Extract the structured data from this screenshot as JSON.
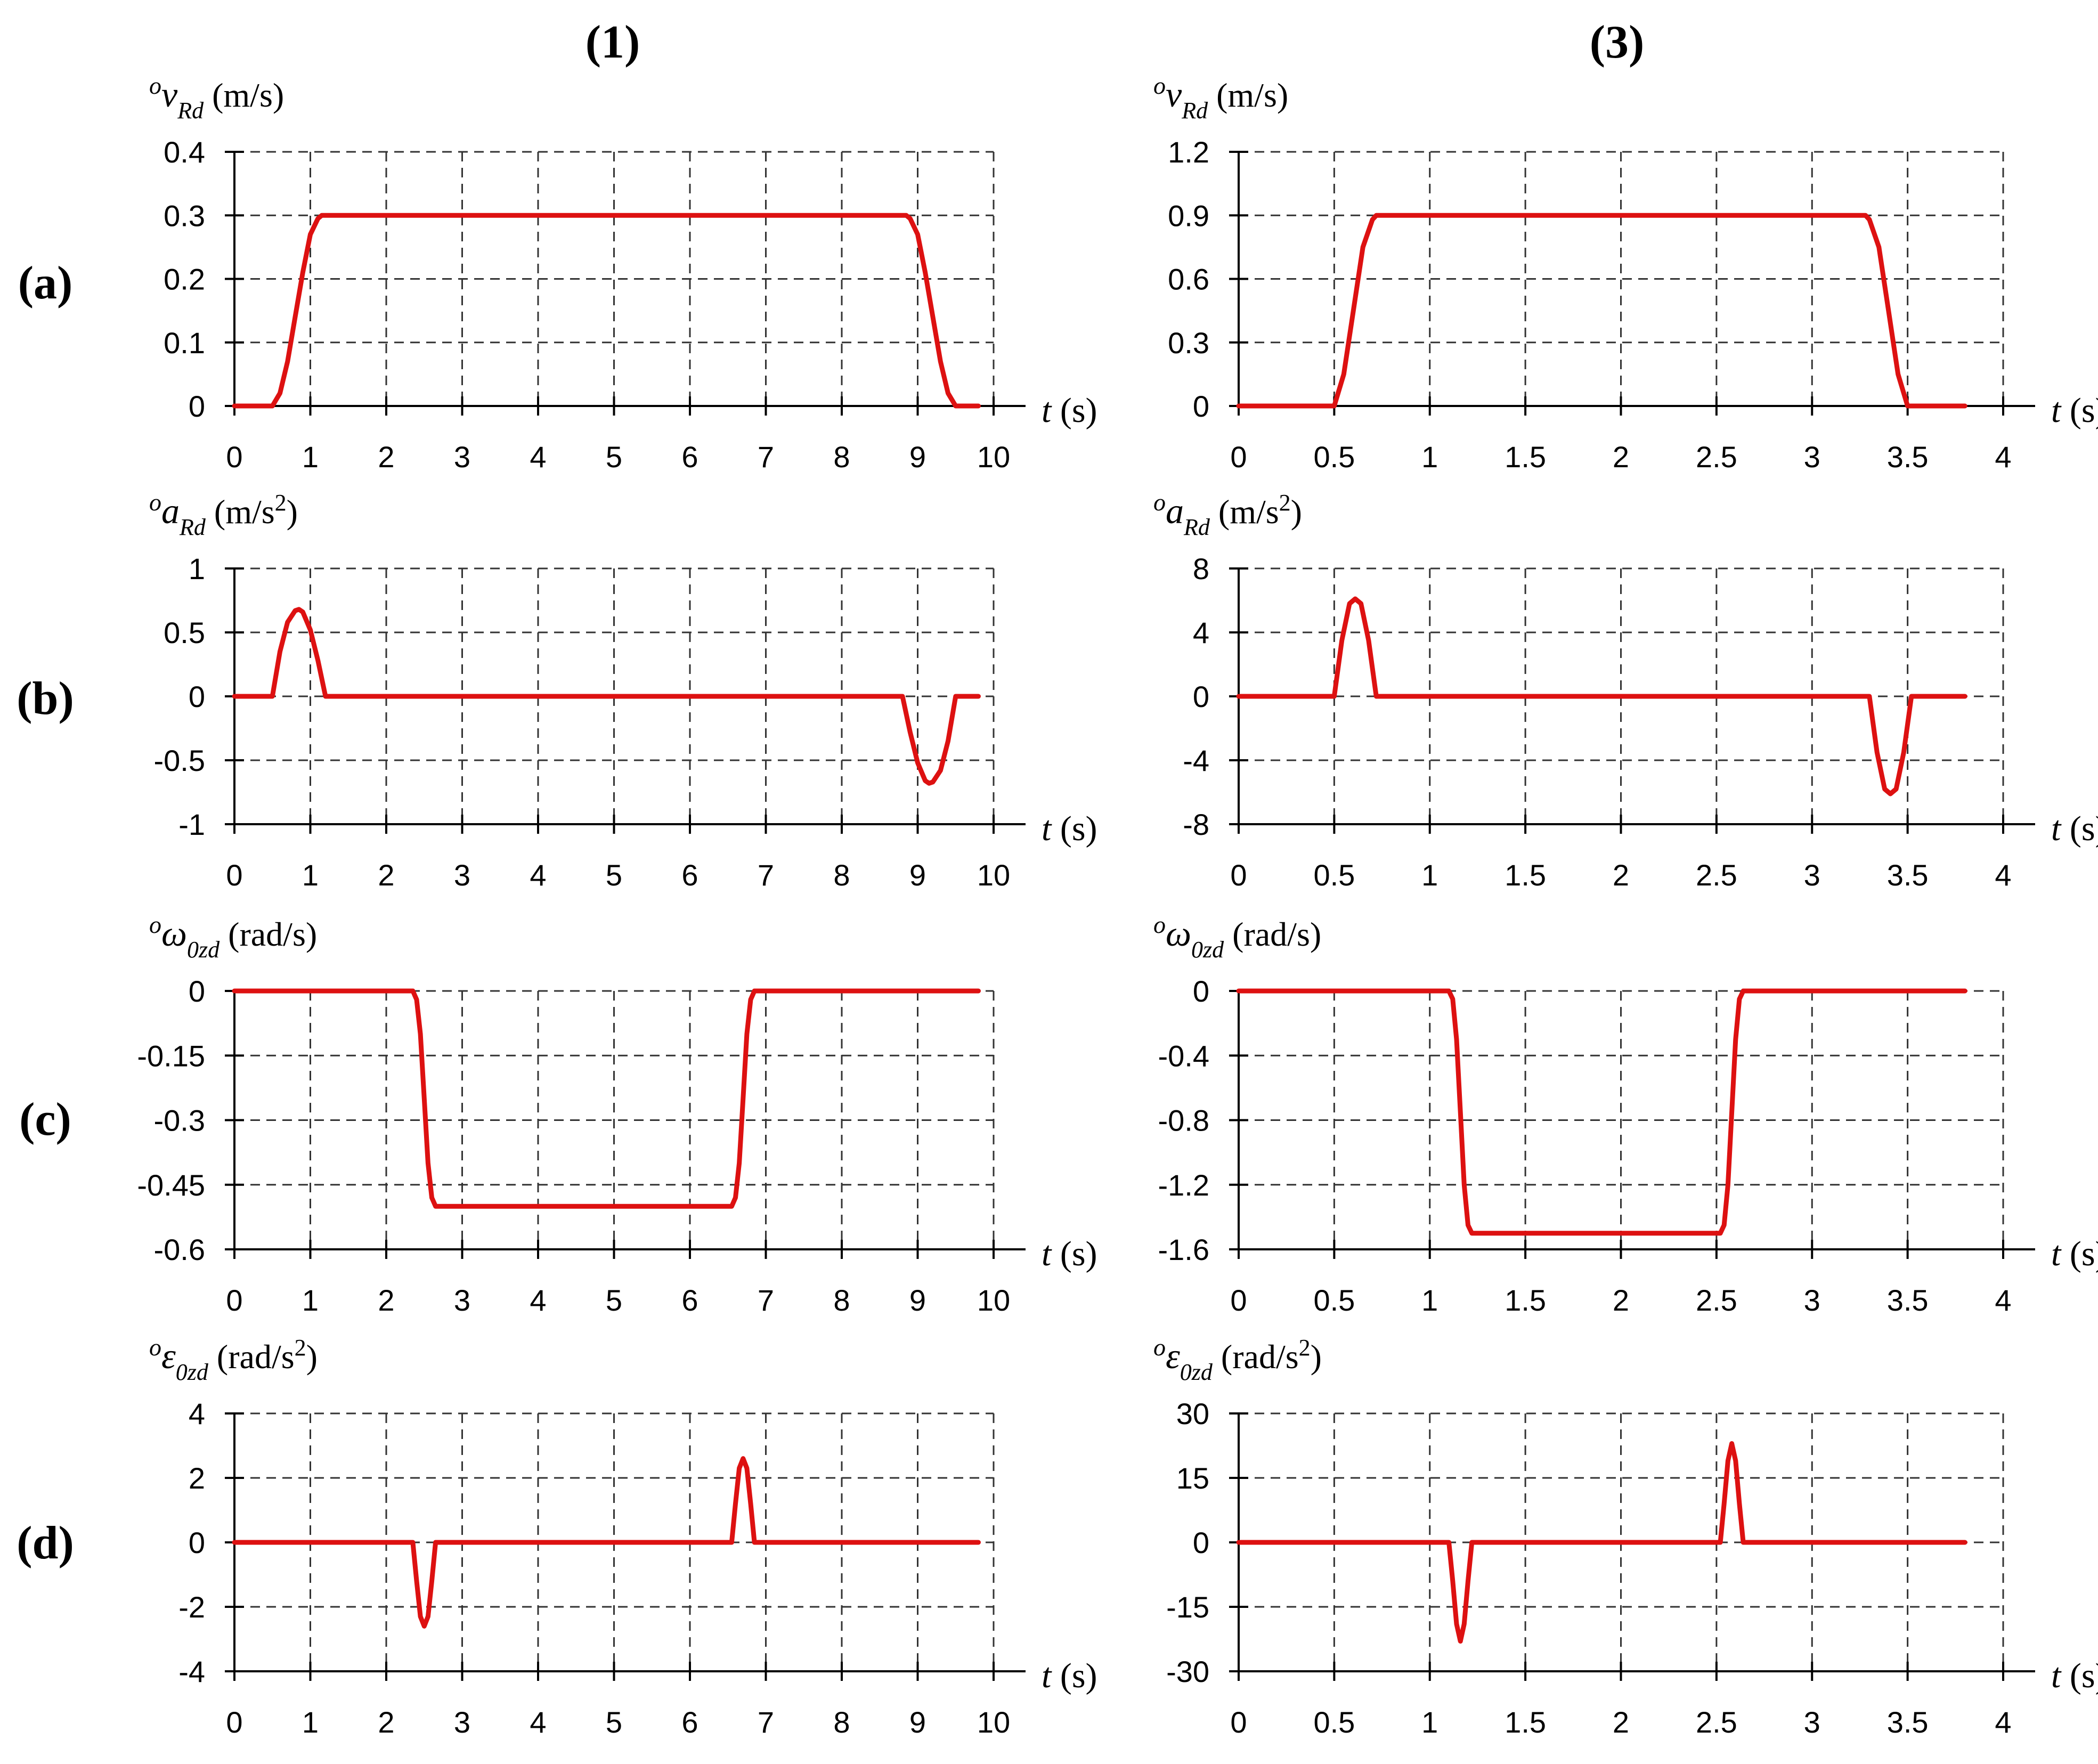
{
  "figure": {
    "column_headers": [
      "(1)",
      "(3)"
    ],
    "row_labels": [
      "(a)",
      "(b)",
      "(c)",
      "(d)"
    ],
    "x_label": {
      "italic": "t",
      "unit": "(s)"
    },
    "line_color": "#dd1111",
    "grid_color": "#333333"
  },
  "chart_data": [
    {
      "id": "a1",
      "type": "line",
      "row": 0,
      "col": 0,
      "ylabel": {
        "sup": "o",
        "sym": "v",
        "sub": "Rd",
        "unit": "(m/s)",
        "unit_sup": ""
      },
      "xlim": [
        0,
        10
      ],
      "ylim": [
        0,
        0.4
      ],
      "xticks": [
        0,
        1,
        2,
        3,
        4,
        5,
        6,
        7,
        8,
        9,
        10
      ],
      "xtick_labels": [
        "0",
        "1",
        "2",
        "3",
        "4",
        "5",
        "6",
        "7",
        "8",
        "9",
        "10"
      ],
      "yticks": [
        0,
        0.1,
        0.2,
        0.3,
        0.4
      ],
      "ytick_labels": [
        "0",
        "0.1",
        "0.2",
        "0.3",
        "0.4"
      ],
      "x": [
        0,
        0.5,
        0.6,
        0.7,
        0.8,
        0.9,
        1.0,
        1.1,
        1.15,
        8.85,
        8.9,
        9.0,
        9.1,
        9.2,
        9.3,
        9.4,
        9.5,
        9.8
      ],
      "y": [
        0,
        0,
        0.02,
        0.07,
        0.14,
        0.21,
        0.27,
        0.295,
        0.3,
        0.3,
        0.295,
        0.27,
        0.21,
        0.14,
        0.07,
        0.02,
        0,
        0
      ]
    },
    {
      "id": "a3",
      "type": "line",
      "row": 0,
      "col": 1,
      "ylabel": {
        "sup": "o",
        "sym": "v",
        "sub": "Rd",
        "unit": "(m/s)",
        "unit_sup": ""
      },
      "xlim": [
        0,
        4
      ],
      "ylim": [
        0,
        1.2
      ],
      "xticks": [
        0,
        0.5,
        1,
        1.5,
        2,
        2.5,
        3,
        3.5,
        4
      ],
      "xtick_labels": [
        "0",
        "0.5",
        "1",
        "1.5",
        "2",
        "2.5",
        "3",
        "3.5",
        "4"
      ],
      "yticks": [
        0,
        0.3,
        0.6,
        0.9,
        1.2
      ],
      "ytick_labels": [
        "0",
        "0.3",
        "0.6",
        "0.9",
        "1.2"
      ],
      "x": [
        0,
        0.5,
        0.55,
        0.6,
        0.65,
        0.7,
        0.72,
        3.28,
        3.3,
        3.35,
        3.4,
        3.45,
        3.5,
        3.8
      ],
      "y": [
        0,
        0,
        0.15,
        0.45,
        0.75,
        0.88,
        0.9,
        0.9,
        0.88,
        0.75,
        0.45,
        0.15,
        0,
        0
      ]
    },
    {
      "id": "b1",
      "type": "line",
      "row": 1,
      "col": 0,
      "ylabel": {
        "sup": "o",
        "sym": "a",
        "sub": "Rd",
        "unit": "(m/s",
        "unit_sup": "2"
      },
      "xlim": [
        0,
        10
      ],
      "ylim": [
        -1,
        1
      ],
      "xticks": [
        0,
        1,
        2,
        3,
        4,
        5,
        6,
        7,
        8,
        9,
        10
      ],
      "xtick_labels": [
        "0",
        "1",
        "2",
        "3",
        "4",
        "5",
        "6",
        "7",
        "8",
        "9",
        "10"
      ],
      "yticks": [
        -1,
        -0.5,
        0,
        0.5,
        1
      ],
      "ytick_labels": [
        "-1",
        "-0.5",
        "0",
        "0.5",
        "1"
      ],
      "x": [
        0,
        0.5,
        0.6,
        0.7,
        0.8,
        0.85,
        0.9,
        1.0,
        1.1,
        1.2,
        8.8,
        8.9,
        9.0,
        9.1,
        9.15,
        9.2,
        9.3,
        9.4,
        9.5,
        9.8
      ],
      "y": [
        0,
        0,
        0.35,
        0.58,
        0.67,
        0.68,
        0.66,
        0.52,
        0.28,
        0,
        0,
        -0.28,
        -0.52,
        -0.66,
        -0.68,
        -0.67,
        -0.58,
        -0.35,
        0,
        0
      ]
    },
    {
      "id": "b3",
      "type": "line",
      "row": 1,
      "col": 1,
      "ylabel": {
        "sup": "o",
        "sym": "a",
        "sub": "Rd",
        "unit": "(m/s",
        "unit_sup": "2"
      },
      "xlim": [
        0,
        4
      ],
      "ylim": [
        -8,
        8
      ],
      "xticks": [
        0,
        0.5,
        1,
        1.5,
        2,
        2.5,
        3,
        3.5,
        4
      ],
      "xtick_labels": [
        "0",
        "0.5",
        "1",
        "1.5",
        "2",
        "2.5",
        "3",
        "3.5",
        "4"
      ],
      "yticks": [
        -8,
        -4,
        0,
        4,
        8
      ],
      "ytick_labels": [
        "-8",
        "-4",
        "0",
        "4",
        "8"
      ],
      "x": [
        0,
        0.5,
        0.54,
        0.58,
        0.61,
        0.64,
        0.68,
        0.72,
        3.3,
        3.34,
        3.38,
        3.41,
        3.44,
        3.48,
        3.52,
        3.8
      ],
      "y": [
        0,
        0,
        3.5,
        5.8,
        6.1,
        5.8,
        3.5,
        0,
        0,
        -3.5,
        -5.8,
        -6.1,
        -5.8,
        -3.5,
        0,
        0
      ]
    },
    {
      "id": "c1",
      "type": "line",
      "row": 2,
      "col": 0,
      "ylabel": {
        "sup": "o",
        "sym": "ω",
        "sub": "0zd",
        "unit": "(rad/s)",
        "unit_sup": ""
      },
      "xlim": [
        0,
        10
      ],
      "ylim": [
        -0.6,
        0
      ],
      "xticks": [
        0,
        1,
        2,
        3,
        4,
        5,
        6,
        7,
        8,
        9,
        10
      ],
      "xtick_labels": [
        "0",
        "1",
        "2",
        "3",
        "4",
        "5",
        "6",
        "7",
        "8",
        "9",
        "10"
      ],
      "yticks": [
        -0.6,
        -0.45,
        -0.3,
        -0.15,
        0
      ],
      "ytick_labels": [
        "-0.6",
        "-0.45",
        "-0.3",
        "-0.15",
        "0"
      ],
      "x": [
        0,
        2.35,
        2.4,
        2.45,
        2.5,
        2.55,
        2.6,
        2.65,
        6.55,
        6.6,
        6.65,
        6.7,
        6.75,
        6.8,
        6.85,
        9.8
      ],
      "y": [
        0,
        0,
        -0.02,
        -0.1,
        -0.25,
        -0.4,
        -0.48,
        -0.5,
        -0.5,
        -0.48,
        -0.4,
        -0.25,
        -0.1,
        -0.02,
        0,
        0
      ]
    },
    {
      "id": "c3",
      "type": "line",
      "row": 2,
      "col": 1,
      "ylabel": {
        "sup": "o",
        "sym": "ω",
        "sub": "0zd",
        "unit": "(rad/s)",
        "unit_sup": ""
      },
      "xlim": [
        0,
        4
      ],
      "ylim": [
        -1.6,
        0
      ],
      "xticks": [
        0,
        0.5,
        1,
        1.5,
        2,
        2.5,
        3,
        3.5,
        4
      ],
      "xtick_labels": [
        "0",
        "0.5",
        "1",
        "1.5",
        "2",
        "2.5",
        "3",
        "3.5",
        "4"
      ],
      "yticks": [
        -1.6,
        -1.2,
        -0.8,
        -0.4,
        0
      ],
      "ytick_labels": [
        "-1.6",
        "-1.2",
        "-0.8",
        "-0.4",
        "0"
      ],
      "x": [
        0,
        1.1,
        1.12,
        1.14,
        1.16,
        1.18,
        1.2,
        1.22,
        2.52,
        2.54,
        2.56,
        2.58,
        2.6,
        2.62,
        2.64,
        3.8
      ],
      "y": [
        0,
        0,
        -0.05,
        -0.3,
        -0.75,
        -1.2,
        -1.45,
        -1.5,
        -1.5,
        -1.45,
        -1.2,
        -0.75,
        -0.3,
        -0.05,
        0,
        0
      ]
    },
    {
      "id": "d1",
      "type": "line",
      "row": 3,
      "col": 0,
      "ylabel": {
        "sup": "o",
        "sym": "ε",
        "sub": "0zd",
        "unit": "(rad/s",
        "unit_sup": "2"
      },
      "xlim": [
        0,
        10
      ],
      "ylim": [
        -4,
        4
      ],
      "xticks": [
        0,
        1,
        2,
        3,
        4,
        5,
        6,
        7,
        8,
        9,
        10
      ],
      "xtick_labels": [
        "0",
        "1",
        "2",
        "3",
        "4",
        "5",
        "6",
        "7",
        "8",
        "9",
        "10"
      ],
      "yticks": [
        -4,
        -2,
        0,
        2,
        4
      ],
      "ytick_labels": [
        "-4",
        "-2",
        "0",
        "2",
        "4"
      ],
      "x": [
        0,
        2.35,
        2.4,
        2.45,
        2.5,
        2.55,
        2.6,
        2.65,
        6.55,
        6.6,
        6.65,
        6.7,
        6.75,
        6.8,
        6.85,
        9.8
      ],
      "y": [
        0,
        0,
        -1.2,
        -2.3,
        -2.6,
        -2.3,
        -1.2,
        0,
        0,
        1.2,
        2.3,
        2.6,
        2.3,
        1.2,
        0,
        0
      ]
    },
    {
      "id": "d3",
      "type": "line",
      "row": 3,
      "col": 1,
      "ylabel": {
        "sup": "o",
        "sym": "ε",
        "sub": "0zd",
        "unit": "(rad/s",
        "unit_sup": "2"
      },
      "xlim": [
        0,
        4
      ],
      "ylim": [
        -30,
        30
      ],
      "xticks": [
        0,
        0.5,
        1,
        1.5,
        2,
        2.5,
        3,
        3.5,
        4
      ],
      "xtick_labels": [
        "0",
        "0.5",
        "1",
        "1.5",
        "2",
        "2.5",
        "3",
        "3.5",
        "4"
      ],
      "yticks": [
        -30,
        -15,
        0,
        15,
        30
      ],
      "ytick_labels": [
        "-30",
        "-15",
        "0",
        "15",
        "30"
      ],
      "x": [
        0,
        1.1,
        1.12,
        1.14,
        1.16,
        1.18,
        1.2,
        1.22,
        2.52,
        2.54,
        2.56,
        2.58,
        2.6,
        2.62,
        2.64,
        3.8
      ],
      "y": [
        0,
        0,
        -9,
        -19,
        -23,
        -19,
        -9,
        0,
        0,
        9,
        19,
        23,
        19,
        9,
        0,
        0
      ]
    }
  ]
}
